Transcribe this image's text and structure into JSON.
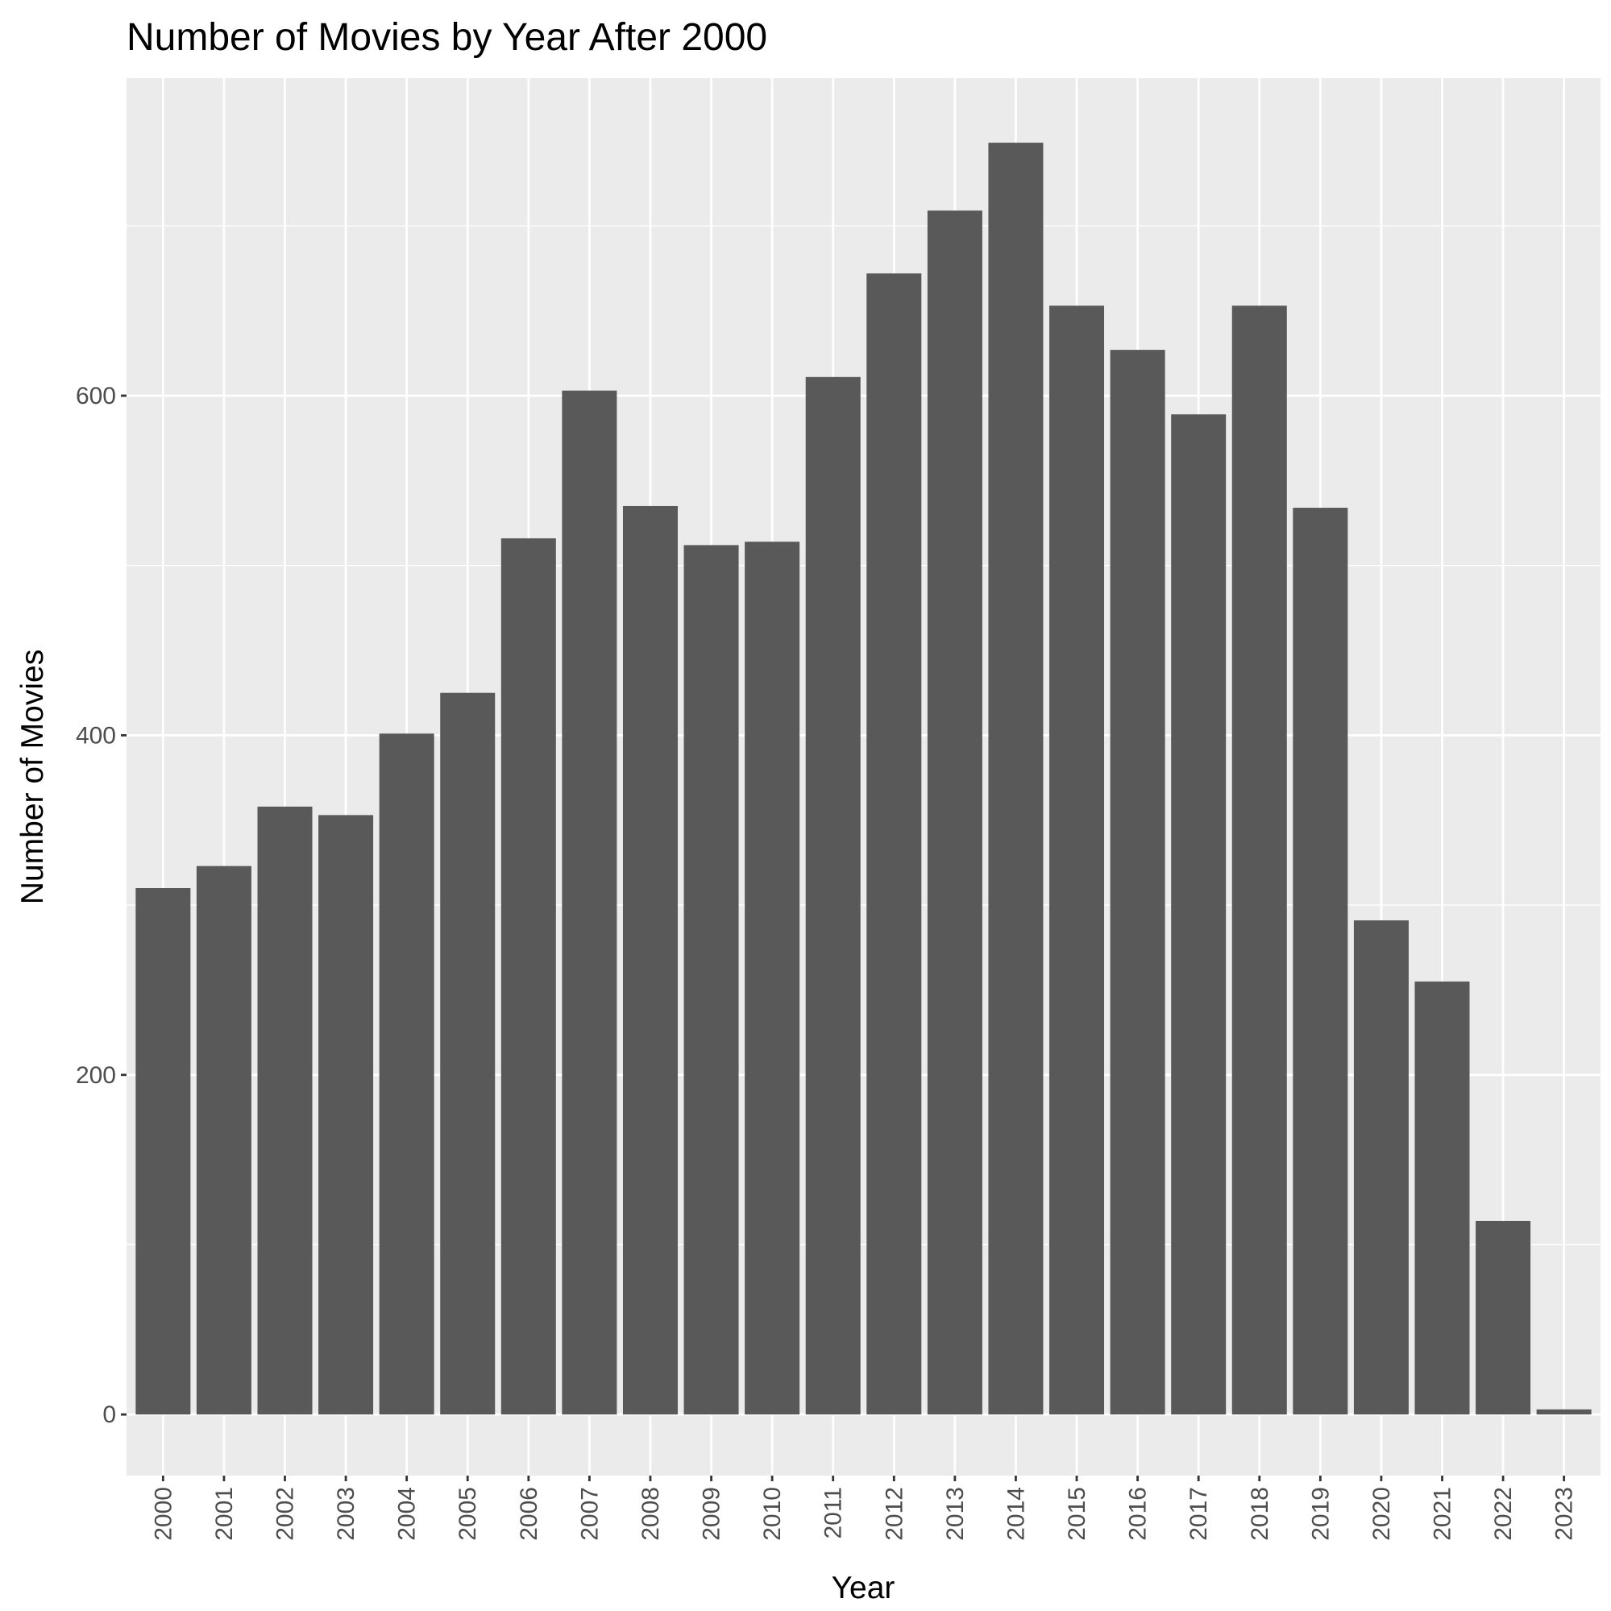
{
  "chart_data": {
    "type": "bar",
    "title": "Number of Movies by Year After 2000",
    "xlabel": "Year",
    "ylabel": "Number of Movies",
    "categories": [
      "2000",
      "2001",
      "2002",
      "2003",
      "2004",
      "2005",
      "2006",
      "2007",
      "2008",
      "2009",
      "2010",
      "2011",
      "2012",
      "2013",
      "2014",
      "2015",
      "2016",
      "2017",
      "2018",
      "2019",
      "2020",
      "2021",
      "2022",
      "2023"
    ],
    "values": [
      310,
      323,
      358,
      353,
      401,
      425,
      516,
      603,
      535,
      512,
      514,
      611,
      672,
      709,
      749,
      653,
      627,
      589,
      653,
      534,
      291,
      255,
      114,
      3
    ],
    "ylim": [
      -36,
      787
    ],
    "y_ticks": [
      0,
      200,
      400,
      600
    ],
    "grid": true,
    "colors": {
      "panel": "#ebebeb",
      "grid": "#ffffff",
      "bar": "#595959",
      "tick": "#333333"
    }
  }
}
